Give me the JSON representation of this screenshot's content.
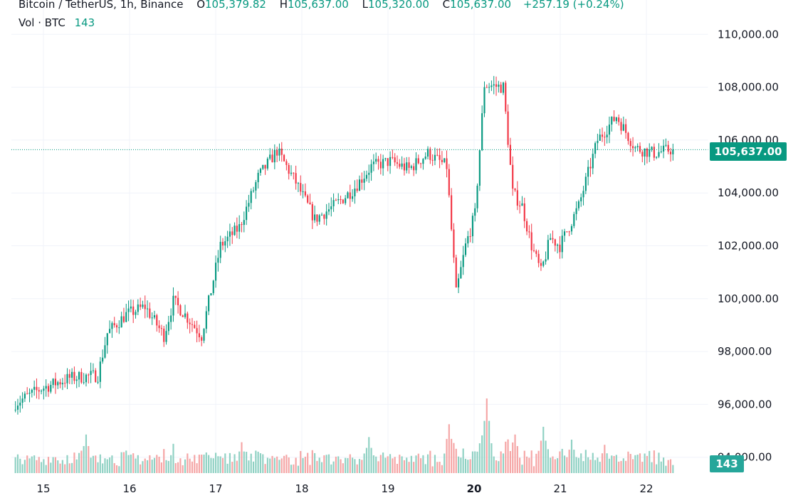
{
  "legend": {
    "symbol": "Bitcoin / TetherUS, 1h, Binance",
    "o_label": "O",
    "o_value": "105,379.82",
    "h_label": "H",
    "h_value": "105,637.00",
    "l_label": "L",
    "l_value": "105,320.00",
    "c_label": "C",
    "c_value": "105,637.00",
    "change": "+257.19 (+0.24%)",
    "vol_label": "Vol · BTC",
    "vol_value": "143"
  },
  "price_tag": "105,637.00",
  "volume_tag": "143",
  "colors": {
    "up": "#089981",
    "down": "#f23645",
    "vol_up": "#8fd1c3",
    "vol_down": "#f5a5a5",
    "grid": "#f0f3fa"
  },
  "chart_data": {
    "type": "candlestick",
    "y_ticks": [
      "94,000.00",
      "96,000.00",
      "98,000.00",
      "100,000.00",
      "102,000.00",
      "104,000.00",
      "106,000.00",
      "108,000.00",
      "110,000.00"
    ],
    "y_tick_values": [
      94000,
      96000,
      98000,
      100000,
      102000,
      104000,
      106000,
      108000,
      110000
    ],
    "x_ticks": [
      "15",
      "16",
      "17",
      "18",
      "19",
      "20",
      "21",
      "22"
    ],
    "ylim": [
      93400,
      111300
    ],
    "last_price": 105637,
    "last_volume": 143,
    "volume_max": 4700,
    "price_path": [
      [
        0,
        96000
      ],
      [
        12,
        96600
      ],
      [
        24,
        97000
      ],
      [
        36,
        97100
      ],
      [
        40,
        98700
      ],
      [
        48,
        99400
      ],
      [
        56,
        99700
      ],
      [
        64,
        98600
      ],
      [
        68,
        99900
      ],
      [
        72,
        99500
      ],
      [
        80,
        98600
      ],
      [
        88,
        102000
      ],
      [
        96,
        102700
      ],
      [
        104,
        104600
      ],
      [
        112,
        105600
      ],
      [
        120,
        104400
      ],
      [
        128,
        103000
      ],
      [
        136,
        103500
      ],
      [
        144,
        104100
      ],
      [
        152,
        105000
      ],
      [
        160,
        105200
      ],
      [
        168,
        104900
      ],
      [
        176,
        105500
      ],
      [
        184,
        105000
      ],
      [
        188,
        100200
      ],
      [
        192,
        102000
      ],
      [
        196,
        103200
      ],
      [
        200,
        108100
      ],
      [
        208,
        108000
      ],
      [
        212,
        104000
      ],
      [
        216,
        103500
      ],
      [
        220,
        102000
      ],
      [
        224,
        101000
      ],
      [
        228,
        102300
      ],
      [
        232,
        102000
      ],
      [
        240,
        103500
      ],
      [
        248,
        106000
      ],
      [
        256,
        106900
      ],
      [
        264,
        105700
      ],
      [
        272,
        105500
      ],
      [
        279,
        105637
      ]
    ],
    "volume_spikes": [
      [
        30,
        1500
      ],
      [
        96,
        1200
      ],
      [
        150,
        1400
      ],
      [
        184,
        1900
      ],
      [
        200,
        2900
      ],
      [
        212,
        1500
      ],
      [
        224,
        1800
      ],
      [
        236,
        1300
      ],
      [
        250,
        1100
      ]
    ]
  }
}
